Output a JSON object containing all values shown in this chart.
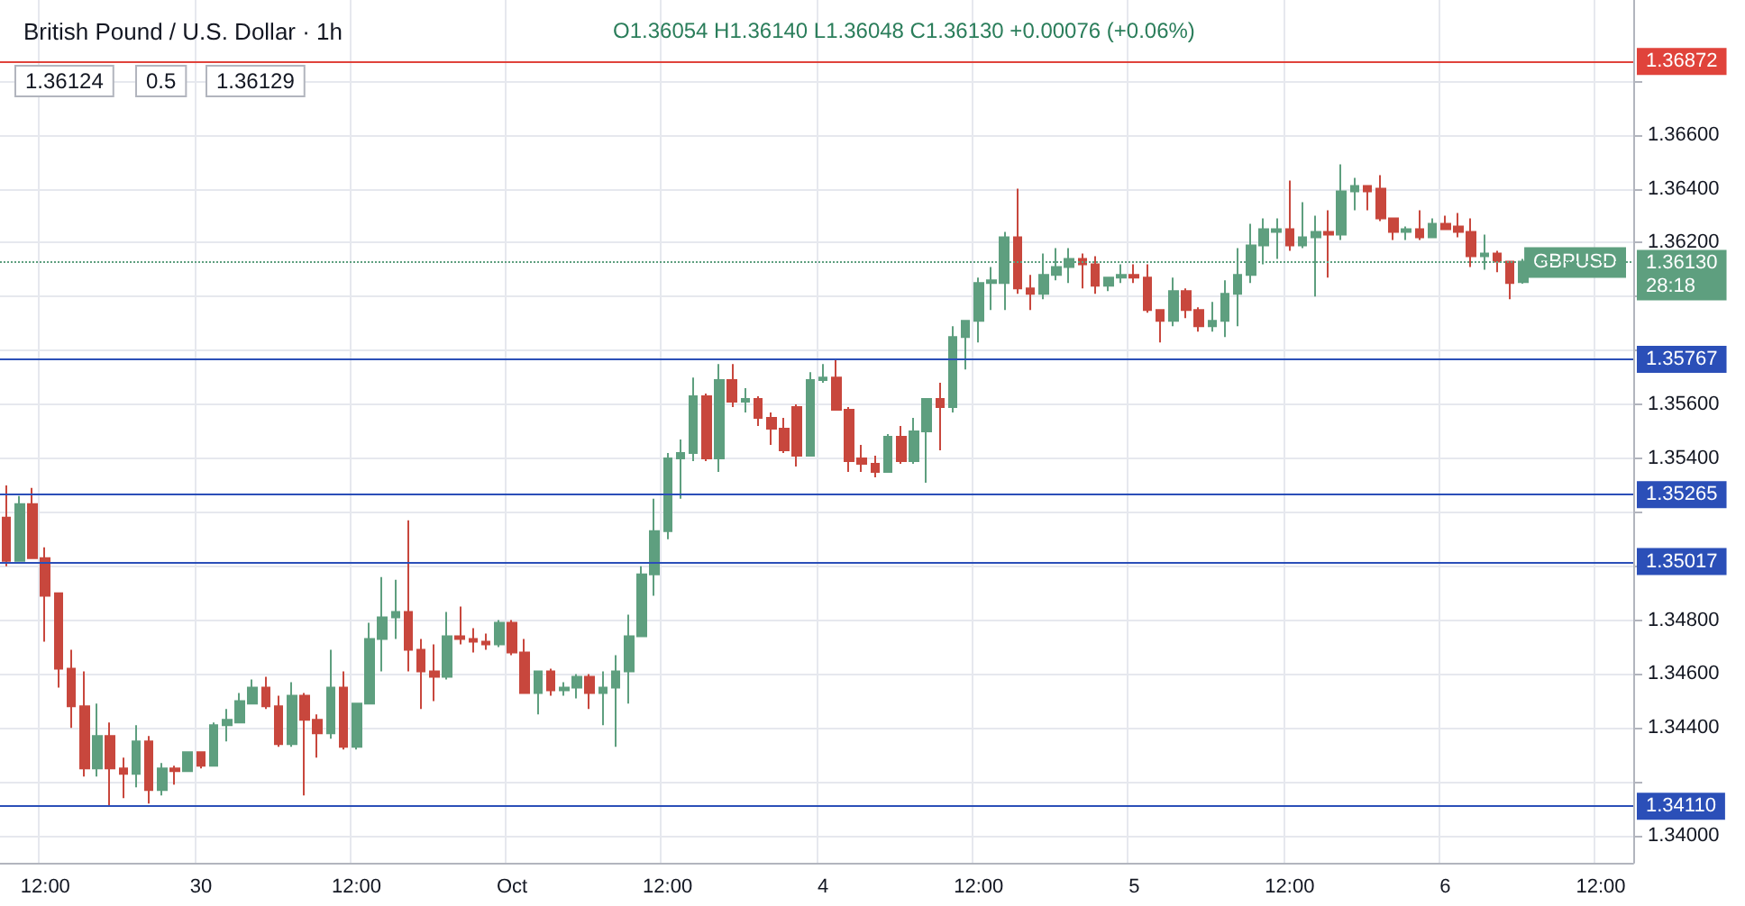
{
  "chart_data": {
    "type": "candlestick",
    "title": "British Pound / U.S. Dollar · 1h",
    "subtitle": "O1.36054 H1.36140 L1.36048 C1.36130 +0.00076 (+0.06%)",
    "annotations": [
      "1.36124",
      "0.5",
      "1.36129",
      "GBPUSD"
    ],
    "categories": [
      null,
      null,
      null,
      "12:00",
      null,
      null,
      null,
      null,
      null,
      null,
      null,
      null,
      null,
      null,
      null,
      "30",
      null,
      null,
      null,
      null,
      null,
      null,
      null,
      null,
      null,
      null,
      null,
      "12:00",
      null,
      null,
      null,
      null,
      null,
      null,
      null,
      null,
      null,
      null,
      null,
      "Oct",
      null,
      null,
      null,
      null,
      null,
      null,
      null,
      null,
      null,
      null,
      null,
      "12:00",
      null,
      null,
      null,
      null,
      null,
      null,
      null,
      null,
      null,
      null,
      null,
      "4",
      null,
      null,
      null,
      null,
      null,
      null,
      null,
      null,
      null,
      null,
      null,
      "12:00",
      null,
      null,
      null,
      null,
      null,
      null,
      null,
      null,
      null,
      null,
      null,
      "5",
      null,
      null,
      null,
      null,
      null,
      null,
      null,
      null,
      null,
      null,
      null,
      "12:00",
      null,
      null,
      null,
      null,
      null,
      null,
      null,
      null,
      null,
      null,
      null,
      "6",
      null,
      null,
      null,
      null,
      null,
      null,
      null,
      null,
      null,
      null,
      null,
      "12:00",
      null,
      null
    ],
    "ohlc": [
      [
        1.3518,
        1.353,
        1.35,
        1.3502
      ],
      [
        1.3502,
        1.3526,
        1.3502,
        1.3523
      ],
      [
        1.3523,
        1.3529,
        1.3503,
        1.3503
      ],
      [
        1.3503,
        1.3507,
        1.3472,
        1.3489
      ],
      [
        1.349,
        1.349,
        1.3455,
        1.3462
      ],
      [
        1.3462,
        1.3469,
        1.344,
        1.3448
      ],
      [
        1.3448,
        1.3461,
        1.3422,
        1.3425
      ],
      [
        1.3425,
        1.3449,
        1.3422,
        1.3437
      ],
      [
        1.3437,
        1.3442,
        1.3411,
        1.3425
      ],
      [
        1.3425,
        1.3429,
        1.3414,
        1.3423
      ],
      [
        1.3423,
        1.3441,
        1.3418,
        1.3435
      ],
      [
        1.3435,
        1.3437,
        1.3412,
        1.3417
      ],
      [
        1.3417,
        1.3427,
        1.3415,
        1.3425
      ],
      [
        1.3425,
        1.3426,
        1.3419,
        1.3424
      ],
      [
        1.3424,
        1.3431,
        1.3424,
        1.3431
      ],
      [
        1.3431,
        1.3431,
        1.3425,
        1.3426
      ],
      [
        1.3426,
        1.3442,
        1.3426,
        1.3441
      ],
      [
        1.3441,
        1.3447,
        1.3435,
        1.3443
      ],
      [
        1.3442,
        1.3453,
        1.3442,
        1.345
      ],
      [
        1.3449,
        1.3458,
        1.3449,
        1.3455
      ],
      [
        1.3455,
        1.3459,
        1.3447,
        1.3448
      ],
      [
        1.3448,
        1.3452,
        1.3433,
        1.3434
      ],
      [
        1.3434,
        1.3457,
        1.3433,
        1.3452
      ],
      [
        1.3452,
        1.3453,
        1.3415,
        1.3443
      ],
      [
        1.3443,
        1.3445,
        1.3429,
        1.3438
      ],
      [
        1.3438,
        1.3469,
        1.3436,
        1.3455
      ],
      [
        1.3455,
        1.3461,
        1.3432,
        1.3433
      ],
      [
        1.3433,
        1.3449,
        1.3432,
        1.3449
      ],
      [
        1.3449,
        1.3479,
        1.3449,
        1.3473
      ],
      [
        1.3473,
        1.3496,
        1.3461,
        1.3481
      ],
      [
        1.3481,
        1.3495,
        1.3473,
        1.3483
      ],
      [
        1.3483,
        1.3517,
        1.3461,
        1.3469
      ],
      [
        1.3469,
        1.3473,
        1.3447,
        1.3461
      ],
      [
        1.3461,
        1.3471,
        1.345,
        1.3459
      ],
      [
        1.3459,
        1.3483,
        1.3458,
        1.3474
      ],
      [
        1.3474,
        1.3485,
        1.3471,
        1.3473
      ],
      [
        1.3473,
        1.3477,
        1.3468,
        1.3472
      ],
      [
        1.3472,
        1.3475,
        1.3469,
        1.3471
      ],
      [
        1.3471,
        1.348,
        1.347,
        1.3479
      ],
      [
        1.3479,
        1.348,
        1.3467,
        1.3468
      ],
      [
        1.3468,
        1.3473,
        1.3453,
        1.3453
      ],
      [
        1.3453,
        1.3461,
        1.3445,
        1.3461
      ],
      [
        1.3461,
        1.3462,
        1.3452,
        1.3454
      ],
      [
        1.3454,
        1.3457,
        1.3452,
        1.3455
      ],
      [
        1.3455,
        1.346,
        1.3451,
        1.3459
      ],
      [
        1.3459,
        1.346,
        1.3447,
        1.3453
      ],
      [
        1.3453,
        1.3461,
        1.3441,
        1.3455
      ],
      [
        1.3455,
        1.3467,
        1.3433,
        1.3461
      ],
      [
        1.3461,
        1.3482,
        1.3449,
        1.3474
      ],
      [
        1.3474,
        1.35,
        1.3474,
        1.3497
      ],
      [
        1.3497,
        1.3525,
        1.3489,
        1.3513
      ],
      [
        1.3513,
        1.3542,
        1.351,
        1.354
      ],
      [
        1.354,
        1.3547,
        1.3525,
        1.3542
      ],
      [
        1.3542,
        1.357,
        1.3539,
        1.3563
      ],
      [
        1.3563,
        1.3564,
        1.3539,
        1.354
      ],
      [
        1.354,
        1.3575,
        1.3535,
        1.3569
      ],
      [
        1.3569,
        1.3575,
        1.3559,
        1.3561
      ],
      [
        1.3561,
        1.3566,
        1.3557,
        1.3562
      ],
      [
        1.3562,
        1.3563,
        1.3552,
        1.3555
      ],
      [
        1.3555,
        1.3557,
        1.3545,
        1.3551
      ],
      [
        1.3551,
        1.3555,
        1.3542,
        1.3543
      ],
      [
        1.3559,
        1.356,
        1.3537,
        1.3541
      ],
      [
        1.3541,
        1.3572,
        1.3541,
        1.3569
      ],
      [
        1.3569,
        1.3575,
        1.3568,
        1.357
      ],
      [
        1.357,
        1.3577,
        1.3558,
        1.3558
      ],
      [
        1.3558,
        1.3559,
        1.3535,
        1.3539
      ],
      [
        1.354,
        1.3545,
        1.3535,
        1.3538
      ],
      [
        1.3538,
        1.3541,
        1.3533,
        1.3535
      ],
      [
        1.3535,
        1.3549,
        1.3535,
        1.3548
      ],
      [
        1.3548,
        1.3552,
        1.3538,
        1.3539
      ],
      [
        1.3539,
        1.3555,
        1.3538,
        1.355
      ],
      [
        1.355,
        1.3562,
        1.3531,
        1.3562
      ],
      [
        1.3562,
        1.3568,
        1.3543,
        1.3559
      ],
      [
        1.3559,
        1.3589,
        1.3557,
        1.3585
      ],
      [
        1.3585,
        1.3591,
        1.3573,
        1.3591
      ],
      [
        1.3591,
        1.3607,
        1.3583,
        1.3605
      ],
      [
        1.3605,
        1.3611,
        1.3595,
        1.3606
      ],
      [
        1.3605,
        1.3624,
        1.3595,
        1.3622
      ],
      [
        1.3622,
        1.364,
        1.3601,
        1.3603
      ],
      [
        1.3603,
        1.3608,
        1.3595,
        1.3601
      ],
      [
        1.3601,
        1.3616,
        1.3599,
        1.3608
      ],
      [
        1.3608,
        1.3618,
        1.3606,
        1.3611
      ],
      [
        1.3611,
        1.3618,
        1.3605,
        1.3614
      ],
      [
        1.3614,
        1.3616,
        1.3603,
        1.3612
      ],
      [
        1.3612,
        1.3615,
        1.3601,
        1.3604
      ],
      [
        1.3604,
        1.3607,
        1.3602,
        1.3607
      ],
      [
        1.3607,
        1.3612,
        1.3605,
        1.3608
      ],
      [
        1.3608,
        1.3612,
        1.3605,
        1.3607
      ],
      [
        1.3607,
        1.3612,
        1.3594,
        1.3595
      ],
      [
        1.3595,
        1.3595,
        1.3583,
        1.3591
      ],
      [
        1.3591,
        1.3607,
        1.3589,
        1.3602
      ],
      [
        1.3602,
        1.3603,
        1.3592,
        1.3595
      ],
      [
        1.3595,
        1.3596,
        1.3587,
        1.3589
      ],
      [
        1.3589,
        1.3598,
        1.3587,
        1.3591
      ],
      [
        1.3591,
        1.3606,
        1.3585,
        1.3601
      ],
      [
        1.3601,
        1.3618,
        1.3589,
        1.3608
      ],
      [
        1.3608,
        1.3627,
        1.3605,
        1.3619
      ],
      [
        1.3619,
        1.3629,
        1.3612,
        1.3625
      ],
      [
        1.3624,
        1.3629,
        1.3614,
        1.3625
      ],
      [
        1.3625,
        1.3643,
        1.3617,
        1.3619
      ],
      [
        1.3619,
        1.3635,
        1.3618,
        1.3622
      ],
      [
        1.3622,
        1.363,
        1.36,
        1.3624
      ],
      [
        1.3624,
        1.3632,
        1.3607,
        1.3623
      ],
      [
        1.3623,
        1.3649,
        1.3621,
        1.3639
      ],
      [
        1.3639,
        1.3644,
        1.3632,
        1.3641
      ],
      [
        1.3641,
        1.3641,
        1.3632,
        1.3639
      ],
      [
        1.364,
        1.3645,
        1.3628,
        1.3629
      ],
      [
        1.3629,
        1.3629,
        1.3621,
        1.3624
      ],
      [
        1.3624,
        1.3626,
        1.3621,
        1.3625
      ],
      [
        1.3625,
        1.3632,
        1.3621,
        1.3622
      ],
      [
        1.3622,
        1.3629,
        1.3622,
        1.3627
      ],
      [
        1.3627,
        1.363,
        1.3625,
        1.3625
      ],
      [
        1.3626,
        1.3631,
        1.3622,
        1.3624
      ],
      [
        1.3624,
        1.3629,
        1.3611,
        1.3615
      ],
      [
        1.3615,
        1.3623,
        1.361,
        1.3616
      ],
      [
        1.3616,
        1.3617,
        1.3609,
        1.3613
      ],
      [
        1.3613,
        1.3613,
        1.3599,
        1.3605
      ],
      [
        1.36054,
        1.3614,
        1.36048,
        1.3613
      ],
      null,
      null,
      null,
      null,
      null,
      null,
      null,
      null
    ],
    "colors": [
      "#c8473d",
      "#5e9f7f",
      "#c8473d",
      "#c8473d",
      "#c8473d",
      "#c8473d",
      "#c8473d",
      "#5e9f7f",
      "#c8473d",
      "#c8473d",
      "#5e9f7f",
      "#c8473d",
      "#5e9f7f",
      "#c8473d",
      "#5e9f7f",
      "#c8473d",
      "#5e9f7f",
      "#5e9f7f",
      "#5e9f7f",
      "#5e9f7f",
      "#c8473d",
      "#c8473d",
      "#5e9f7f",
      "#c8473d",
      "#c8473d",
      "#5e9f7f",
      "#c8473d",
      "#5e9f7f",
      "#5e9f7f",
      "#5e9f7f",
      "#5e9f7f",
      "#c8473d",
      "#c8473d",
      "#c8473d",
      "#5e9f7f",
      "#c8473d",
      "#c8473d",
      "#c8473d",
      "#5e9f7f",
      "#c8473d",
      "#c8473d",
      "#5e9f7f",
      "#c8473d",
      "#5e9f7f",
      "#5e9f7f",
      "#c8473d",
      "#5e9f7f",
      "#5e9f7f",
      "#5e9f7f",
      "#5e9f7f",
      "#5e9f7f",
      "#5e9f7f",
      "#5e9f7f",
      "#5e9f7f",
      "#c8473d",
      "#5e9f7f",
      "#c8473d",
      "#5e9f7f",
      "#c8473d",
      "#c8473d",
      "#c8473d",
      "#c8473d",
      "#5e9f7f",
      "#5e9f7f",
      "#c8473d",
      "#c8473d",
      "#c8473d",
      "#c8473d",
      "#5e9f7f",
      "#c8473d",
      "#5e9f7f",
      "#5e9f7f",
      "#c8473d",
      "#5e9f7f",
      "#5e9f7f",
      "#5e9f7f",
      "#5e9f7f",
      "#5e9f7f",
      "#c8473d",
      "#c8473d",
      "#5e9f7f",
      "#5e9f7f",
      "#5e9f7f",
      "#c8473d",
      "#c8473d",
      "#5e9f7f",
      "#5e9f7f",
      "#c8473d",
      "#c8473d",
      "#c8473d",
      "#5e9f7f",
      "#c8473d",
      "#c8473d",
      "#5e9f7f",
      "#5e9f7f",
      "#5e9f7f",
      "#5e9f7f",
      "#5e9f7f",
      "#5e9f7f",
      "#c8473d",
      "#5e9f7f",
      "#5e9f7f",
      "#c8473d",
      "#5e9f7f",
      "#5e9f7f",
      "#c8473d",
      "#c8473d",
      "#c8473d",
      "#5e9f7f",
      "#c8473d",
      "#5e9f7f",
      "#c8473d",
      "#c8473d",
      "#c8473d",
      "#5e9f7f",
      "#c8473d",
      "#c8473d",
      "#5e9f7f",
      null,
      null,
      null,
      null,
      null,
      null,
      null,
      null
    ],
    "ylim": [
      1.339,
      1.371
    ],
    "yticks": [
      {
        "value": 1.34,
        "label": "1.34000"
      },
      {
        "value": 1.342,
        "label": null
      },
      {
        "value": 1.344,
        "label": "1.34400"
      },
      {
        "value": 1.346,
        "label": "1.34600"
      },
      {
        "value": 1.348,
        "label": "1.34800"
      },
      {
        "value": 1.35,
        "label": null
      },
      {
        "value": 1.352,
        "label": null
      },
      {
        "value": 1.354,
        "label": "1.35400"
      },
      {
        "value": 1.356,
        "label": "1.35600"
      },
      {
        "value": 1.358,
        "label": null
      },
      {
        "value": 1.36,
        "label": null
      },
      {
        "value": 1.362,
        "label": "1.36200"
      },
      {
        "value": 1.364,
        "label": "1.36400"
      },
      {
        "value": 1.366,
        "label": "1.36600"
      },
      {
        "value": 1.368,
        "label": null
      }
    ],
    "ref_lines": [
      {
        "axis": "y",
        "value": 1.36872,
        "label": "1.36872",
        "color": "#e0433b"
      },
      {
        "axis": "y",
        "value": 1.35767,
        "label": "1.35767",
        "color": "#2b4fb8"
      },
      {
        "axis": "y",
        "value": 1.35265,
        "label": "1.35265",
        "color": "#2b4fb8"
      },
      {
        "axis": "y",
        "value": 1.35017,
        "label": "1.35017",
        "color": "#2b4fb8"
      },
      {
        "axis": "y",
        "value": 1.3411,
        "label": "1.34110",
        "color": "#2b4fb8"
      },
      {
        "axis": "y",
        "value": 1.3613,
        "label": "1.36130\n28:18",
        "color": "#5e9f7f",
        "line_style": "dotted"
      }
    ],
    "grid": true
  }
}
